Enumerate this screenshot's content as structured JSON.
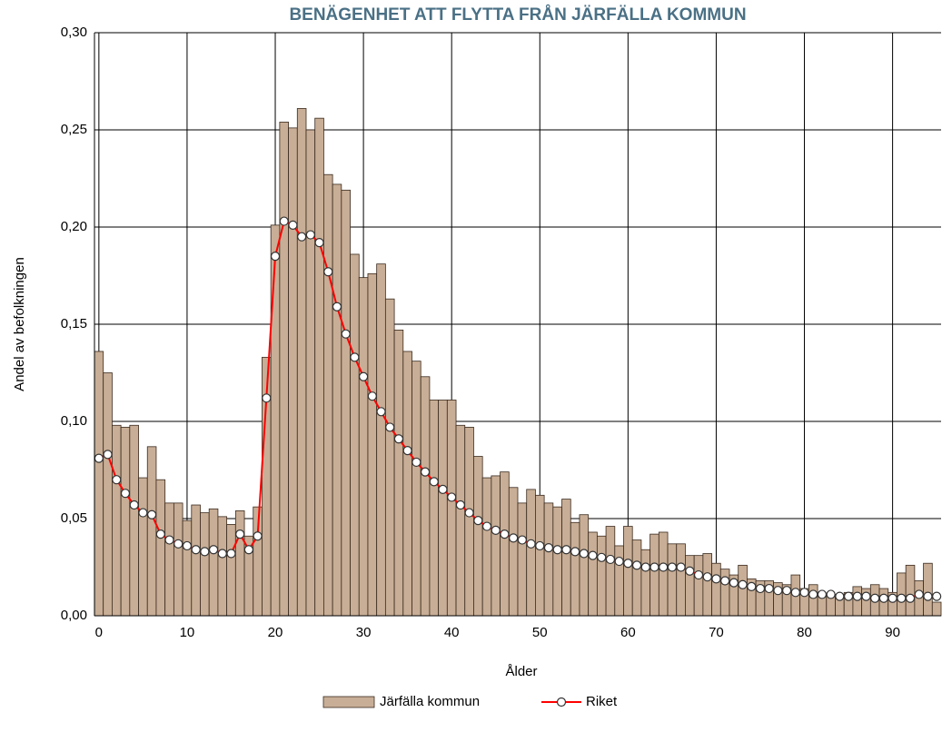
{
  "chart_data": {
    "type": "bar",
    "title": "BENÄGENHET ATT FLYTTA FRÅN JÄRFÄLLA KOMMUN",
    "x_label": "Ålder",
    "y_label": "Andel av befolkningen",
    "x": [
      0,
      1,
      2,
      3,
      4,
      5,
      6,
      7,
      8,
      9,
      10,
      11,
      12,
      13,
      14,
      15,
      16,
      17,
      18,
      19,
      20,
      21,
      22,
      23,
      24,
      25,
      26,
      27,
      28,
      29,
      30,
      31,
      32,
      33,
      34,
      35,
      36,
      37,
      38,
      39,
      40,
      41,
      42,
      43,
      44,
      45,
      46,
      47,
      48,
      49,
      50,
      51,
      52,
      53,
      54,
      55,
      56,
      57,
      58,
      59,
      60,
      61,
      62,
      63,
      64,
      65,
      66,
      67,
      68,
      69,
      70,
      71,
      72,
      73,
      74,
      75,
      76,
      77,
      78,
      79,
      80,
      81,
      82,
      83,
      84,
      85,
      86,
      87,
      88,
      89,
      90,
      91,
      92,
      93,
      94,
      95
    ],
    "series": [
      {
        "name": "Järfälla kommun",
        "type": "bar",
        "color": "#c8ae96",
        "values": [
          0.136,
          0.125,
          0.098,
          0.097,
          0.098,
          0.071,
          0.087,
          0.07,
          0.058,
          0.058,
          0.049,
          0.057,
          0.053,
          0.055,
          0.051,
          0.047,
          0.054,
          0.041,
          0.056,
          0.133,
          0.201,
          0.254,
          0.251,
          0.261,
          0.25,
          0.256,
          0.227,
          0.222,
          0.219,
          0.186,
          0.174,
          0.176,
          0.181,
          0.163,
          0.147,
          0.136,
          0.131,
          0.123,
          0.111,
          0.111,
          0.111,
          0.098,
          0.097,
          0.082,
          0.071,
          0.072,
          0.074,
          0.066,
          0.058,
          0.065,
          0.062,
          0.058,
          0.056,
          0.06,
          0.048,
          0.052,
          0.043,
          0.041,
          0.046,
          0.036,
          0.046,
          0.039,
          0.034,
          0.042,
          0.043,
          0.037,
          0.037,
          0.031,
          0.031,
          0.032,
          0.027,
          0.024,
          0.021,
          0.026,
          0.019,
          0.018,
          0.018,
          0.017,
          0.016,
          0.021,
          0.014,
          0.016,
          0.011,
          0.011,
          0.011,
          0.012,
          0.015,
          0.014,
          0.016,
          0.014,
          0.012,
          0.022,
          0.026,
          0.018,
          0.027,
          0.007
        ]
      },
      {
        "name": "Riket",
        "type": "line",
        "color": "#ff0000",
        "values": [
          0.081,
          0.083,
          0.07,
          0.063,
          0.057,
          0.053,
          0.052,
          0.042,
          0.039,
          0.037,
          0.036,
          0.034,
          0.033,
          0.034,
          0.032,
          0.032,
          0.042,
          0.034,
          0.041,
          0.112,
          0.185,
          0.203,
          0.201,
          0.195,
          0.196,
          0.192,
          0.177,
          0.159,
          0.145,
          0.133,
          0.123,
          0.113,
          0.105,
          0.097,
          0.091,
          0.085,
          0.079,
          0.074,
          0.069,
          0.065,
          0.061,
          0.057,
          0.053,
          0.049,
          0.046,
          0.044,
          0.042,
          0.04,
          0.039,
          0.037,
          0.036,
          0.035,
          0.034,
          0.034,
          0.033,
          0.032,
          0.031,
          0.03,
          0.029,
          0.028,
          0.027,
          0.026,
          0.025,
          0.025,
          0.025,
          0.025,
          0.025,
          0.023,
          0.021,
          0.02,
          0.019,
          0.018,
          0.017,
          0.016,
          0.015,
          0.014,
          0.014,
          0.013,
          0.013,
          0.012,
          0.012,
          0.011,
          0.011,
          0.011,
          0.01,
          0.01,
          0.01,
          0.01,
          0.009,
          0.009,
          0.009,
          0.009,
          0.009,
          0.011,
          0.01,
          0.01
        ]
      }
    ],
    "xlim": [
      -0.5,
      95.5
    ],
    "xticks": [
      0,
      10,
      20,
      30,
      40,
      50,
      60,
      70,
      80,
      90
    ],
    "ylim": [
      0,
      0.3
    ],
    "yticks": [
      {
        "value": 0,
        "label": "0,00"
      },
      {
        "value": 0.05,
        "label": "0,05"
      },
      {
        "value": 0.1,
        "label": "0,10"
      },
      {
        "value": 0.15,
        "label": "0,15"
      },
      {
        "value": 0.2,
        "label": "0,20"
      },
      {
        "value": 0.25,
        "label": "0,25"
      },
      {
        "value": 0.3,
        "label": "0,30"
      }
    ],
    "grid": true,
    "legend": "bottom"
  }
}
